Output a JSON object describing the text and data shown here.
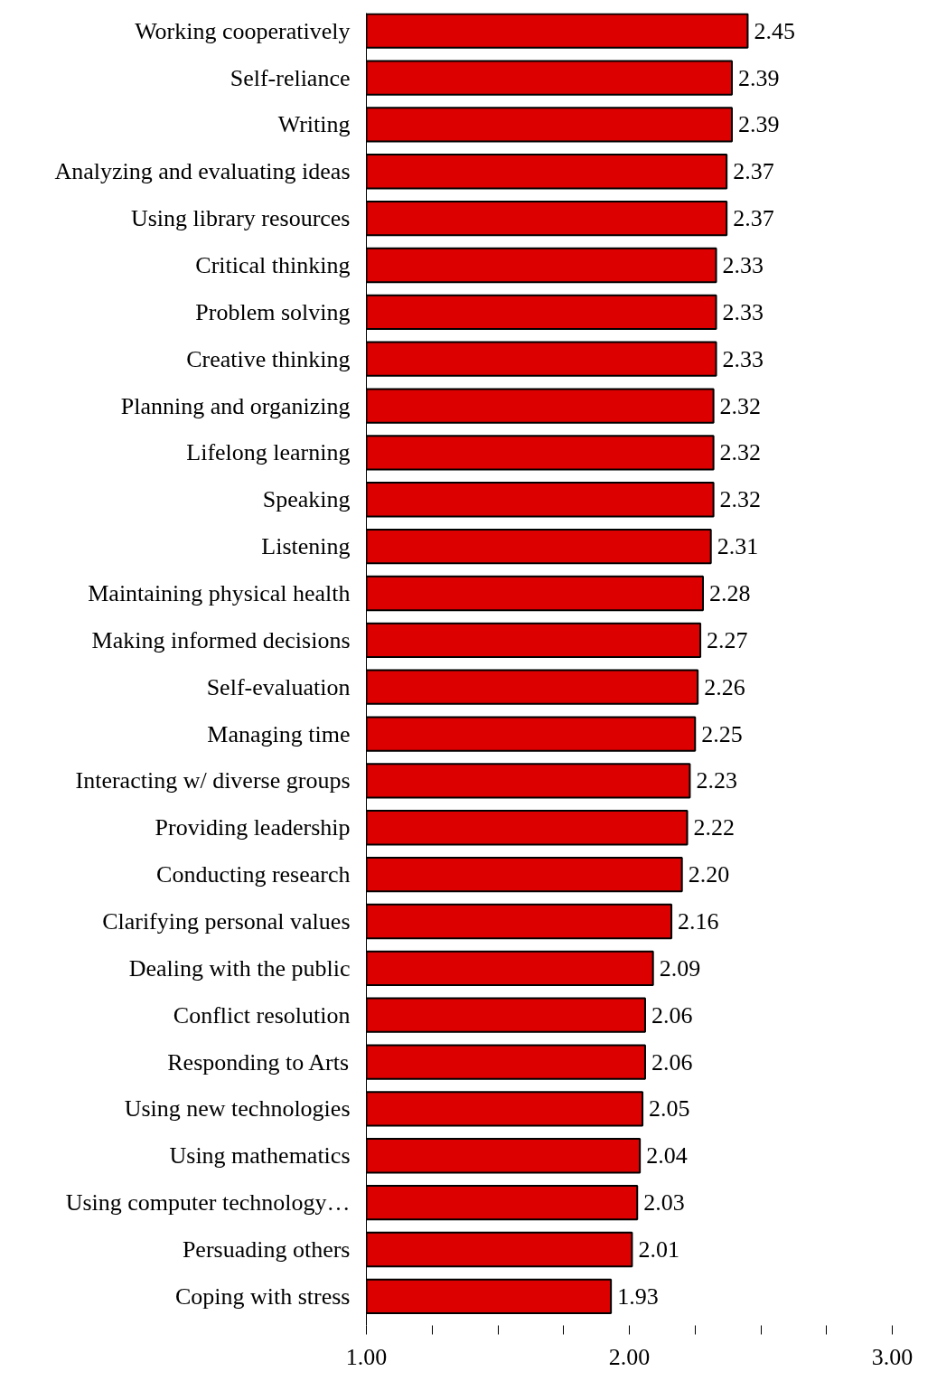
{
  "chart_data": {
    "type": "bar",
    "orientation": "horizontal",
    "categories": [
      "Working cooperatively",
      "Self-reliance",
      "Writing",
      "Analyzing and evaluating ideas",
      "Using library resources",
      "Critical thinking",
      "Problem solving",
      "Creative thinking",
      "Planning and organizing",
      "Lifelong learning",
      "Speaking",
      "Listening",
      "Maintaining physical health",
      "Making informed decisions",
      "Self-evaluation",
      "Managing time",
      "Interacting w/ diverse groups",
      "Providing leadership",
      "Conducting research",
      "Clarifying personal values",
      "Dealing with the public",
      "Conflict resolution",
      "Responding to Arts",
      "Using new technologies",
      "Using mathematics",
      "Using computer technology…",
      "Persuading others",
      "Coping with stress"
    ],
    "values": [
      2.45,
      2.39,
      2.39,
      2.37,
      2.37,
      2.33,
      2.33,
      2.33,
      2.32,
      2.32,
      2.32,
      2.31,
      2.28,
      2.27,
      2.26,
      2.25,
      2.23,
      2.22,
      2.2,
      2.16,
      2.09,
      2.06,
      2.06,
      2.05,
      2.04,
      2.03,
      2.01,
      1.93
    ],
    "value_labels": [
      "2.45",
      "2.39",
      "2.39",
      "2.37",
      "2.37",
      "2.33",
      "2.33",
      "2.33",
      "2.32",
      "2.32",
      "2.32",
      "2.31",
      "2.28",
      "2.27",
      "2.26",
      "2.25",
      "2.23",
      "2.22",
      "2.20",
      "2.16",
      "2.09",
      "2.06",
      "2.06",
      "2.05",
      "2.04",
      "2.03",
      "2.01",
      "1.93"
    ],
    "color": "#dd0000",
    "xlim": [
      1,
      3
    ],
    "xticks": [
      {
        "value": 1,
        "label": "1.00"
      },
      {
        "value": 1.25,
        "label": null
      },
      {
        "value": 1.5,
        "label": null
      },
      {
        "value": 1.75,
        "label": null
      },
      {
        "value": 2,
        "label": "2.00"
      },
      {
        "value": 2.25,
        "label": null
      },
      {
        "value": 2.5,
        "label": null
      },
      {
        "value": 2.75,
        "label": null
      },
      {
        "value": 3,
        "label": "3.00"
      }
    ],
    "grid": false
  }
}
